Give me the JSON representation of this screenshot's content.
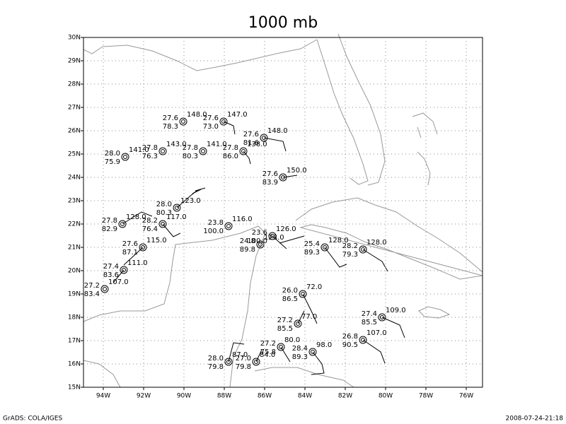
{
  "title": "1000 mb",
  "lat_labels": [
    "15N",
    "16N",
    "17N",
    "18N",
    "19N",
    "20N",
    "21N",
    "22N",
    "23N",
    "24N",
    "25N",
    "26N",
    "27N",
    "28N",
    "29N",
    "30N"
  ],
  "lon_labels": [
    "94W",
    "92W",
    "90W",
    "88W",
    "86W",
    "84W",
    "82W",
    "80W",
    "78W",
    "76W"
  ],
  "stations": [
    {
      "temp": "27.6",
      "height": "148.0",
      "dew": "78.3"
    },
    {
      "temp": "27.6",
      "height": "147.0",
      "dew": "73.0"
    },
    {
      "temp": "27.6",
      "height": "148.0",
      "dew": "81.6"
    },
    {
      "temp": "28.0",
      "height": "141.0",
      "dew": "75.9"
    },
    {
      "temp": "27.8",
      "height": "143.0",
      "dew": "76.3"
    },
    {
      "temp": "27.8",
      "height": "141.0",
      "dew": "80.3"
    },
    {
      "temp": "27.8",
      "height": "138.0",
      "dew": "86.0"
    },
    {
      "temp": "27.6",
      "height": "150.0",
      "dew": "83.9"
    },
    {
      "temp": "28.0",
      "height": "123.0",
      "dew": "80.3"
    },
    {
      "temp": "27.8",
      "height": "128.0",
      "dew": "82.9"
    },
    {
      "temp": "28.2",
      "height": "117.0",
      "dew": "76.4"
    },
    {
      "temp": "23.8",
      "height": "116.0",
      "dew": "100.0"
    },
    {
      "temp": "23.6",
      "height": "126.0",
      "dew": "100.0"
    },
    {
      "temp": "24.8",
      "height": "123.0",
      "dew": "89.8"
    },
    {
      "temp": "25.4",
      "height": "128.0",
      "dew": "89.3"
    },
    {
      "temp": "28.2",
      "height": "128.0",
      "dew": "79.3"
    },
    {
      "temp": "27.6",
      "height": "115.0",
      "dew": "87.1"
    },
    {
      "temp": "27.4",
      "height": "111.0",
      "dew": "83.6"
    },
    {
      "temp": "27.2",
      "height": "107.0",
      "dew": "83.4"
    },
    {
      "temp": "26.0",
      "height": "72.0",
      "dew": "86.5"
    },
    {
      "temp": "27.2",
      "height": "77.0",
      "dew": "85.5"
    },
    {
      "temp": "27.4",
      "height": "109.0",
      "dew": "85.5"
    },
    {
      "temp": "26.8",
      "height": "107.0",
      "dew": "90.5"
    },
    {
      "temp": "27.2",
      "height": "80.0",
      "dew": "75.8"
    },
    {
      "temp": "28.4",
      "height": "98.0",
      "dew": "89.3"
    },
    {
      "temp": "28.0",
      "height": "87.0",
      "dew": "79.8"
    },
    {
      "temp": "27.0",
      "height": "84.0",
      "dew": "79.8"
    }
  ],
  "footer": {
    "left": "GrADS: COLA/IGES",
    "right": "2008-07-24-21:18"
  }
}
